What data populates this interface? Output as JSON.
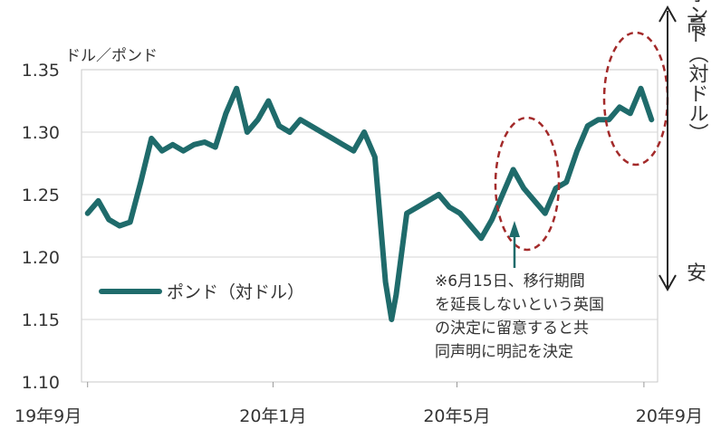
{
  "chart_data": {
    "type": "line",
    "ylabel": "ドル／ポンド",
    "ylim": [
      1.1,
      1.35
    ],
    "y_ticks": [
      "1.35",
      "1.30",
      "1.25",
      "1.20",
      "1.15",
      "1.10"
    ],
    "x_ticks": [
      "19年9月",
      "20年1月",
      "20年5月",
      "20年9月"
    ],
    "grid": "horizontal",
    "legend": {
      "label": "ポンド（対ドル）",
      "position": "bottom-left"
    },
    "series": [
      {
        "name": "ポンド（対ドル）",
        "color": "#1f6b6b",
        "x": [
          "2019-09-01",
          "2019-09-08",
          "2019-09-15",
          "2019-09-22",
          "2019-09-29",
          "2019-10-06",
          "2019-10-13",
          "2019-10-20",
          "2019-10-27",
          "2019-11-03",
          "2019-11-10",
          "2019-11-17",
          "2019-11-24",
          "2019-12-01",
          "2019-12-08",
          "2019-12-15",
          "2019-12-22",
          "2019-12-29",
          "2020-01-05",
          "2020-01-12",
          "2020-01-19",
          "2020-01-26",
          "2020-02-02",
          "2020-02-09",
          "2020-02-16",
          "2020-02-23",
          "2020-03-01",
          "2020-03-08",
          "2020-03-15",
          "2020-03-19",
          "2020-03-22",
          "2020-03-29",
          "2020-04-05",
          "2020-04-12",
          "2020-04-19",
          "2020-04-26",
          "2020-05-03",
          "2020-05-10",
          "2020-05-17",
          "2020-05-24",
          "2020-05-31",
          "2020-06-07",
          "2020-06-14",
          "2020-06-21",
          "2020-06-28",
          "2020-07-05",
          "2020-07-12",
          "2020-07-19",
          "2020-07-26",
          "2020-08-02",
          "2020-08-09",
          "2020-08-16",
          "2020-08-23",
          "2020-08-30",
          "2020-09-06"
        ],
        "values": [
          1.235,
          1.245,
          1.23,
          1.225,
          1.228,
          1.26,
          1.295,
          1.285,
          1.29,
          1.285,
          1.29,
          1.292,
          1.288,
          1.315,
          1.335,
          1.3,
          1.31,
          1.325,
          1.305,
          1.3,
          1.31,
          1.305,
          1.3,
          1.295,
          1.29,
          1.285,
          1.3,
          1.28,
          1.18,
          1.15,
          1.17,
          1.235,
          1.24,
          1.245,
          1.25,
          1.24,
          1.235,
          1.225,
          1.215,
          1.23,
          1.25,
          1.27,
          1.255,
          1.245,
          1.235,
          1.255,
          1.26,
          1.285,
          1.305,
          1.31,
          1.31,
          1.32,
          1.315,
          1.335,
          1.31
        ]
      }
    ],
    "annotations": [
      {
        "text": "※6月15日、移行期間を延長しないという英国の決定に留意すると共同声明に明記を決定",
        "lines": [
          "※6月15日、移行期間",
          "を延長しないという英国",
          "の決定に留意すると共",
          "同声明に明記を決定"
        ]
      },
      {
        "text": "高",
        "side": "right"
      },
      {
        "text": "ポンド（対ドル）",
        "side": "right"
      },
      {
        "text": "安",
        "side": "right"
      }
    ]
  }
}
